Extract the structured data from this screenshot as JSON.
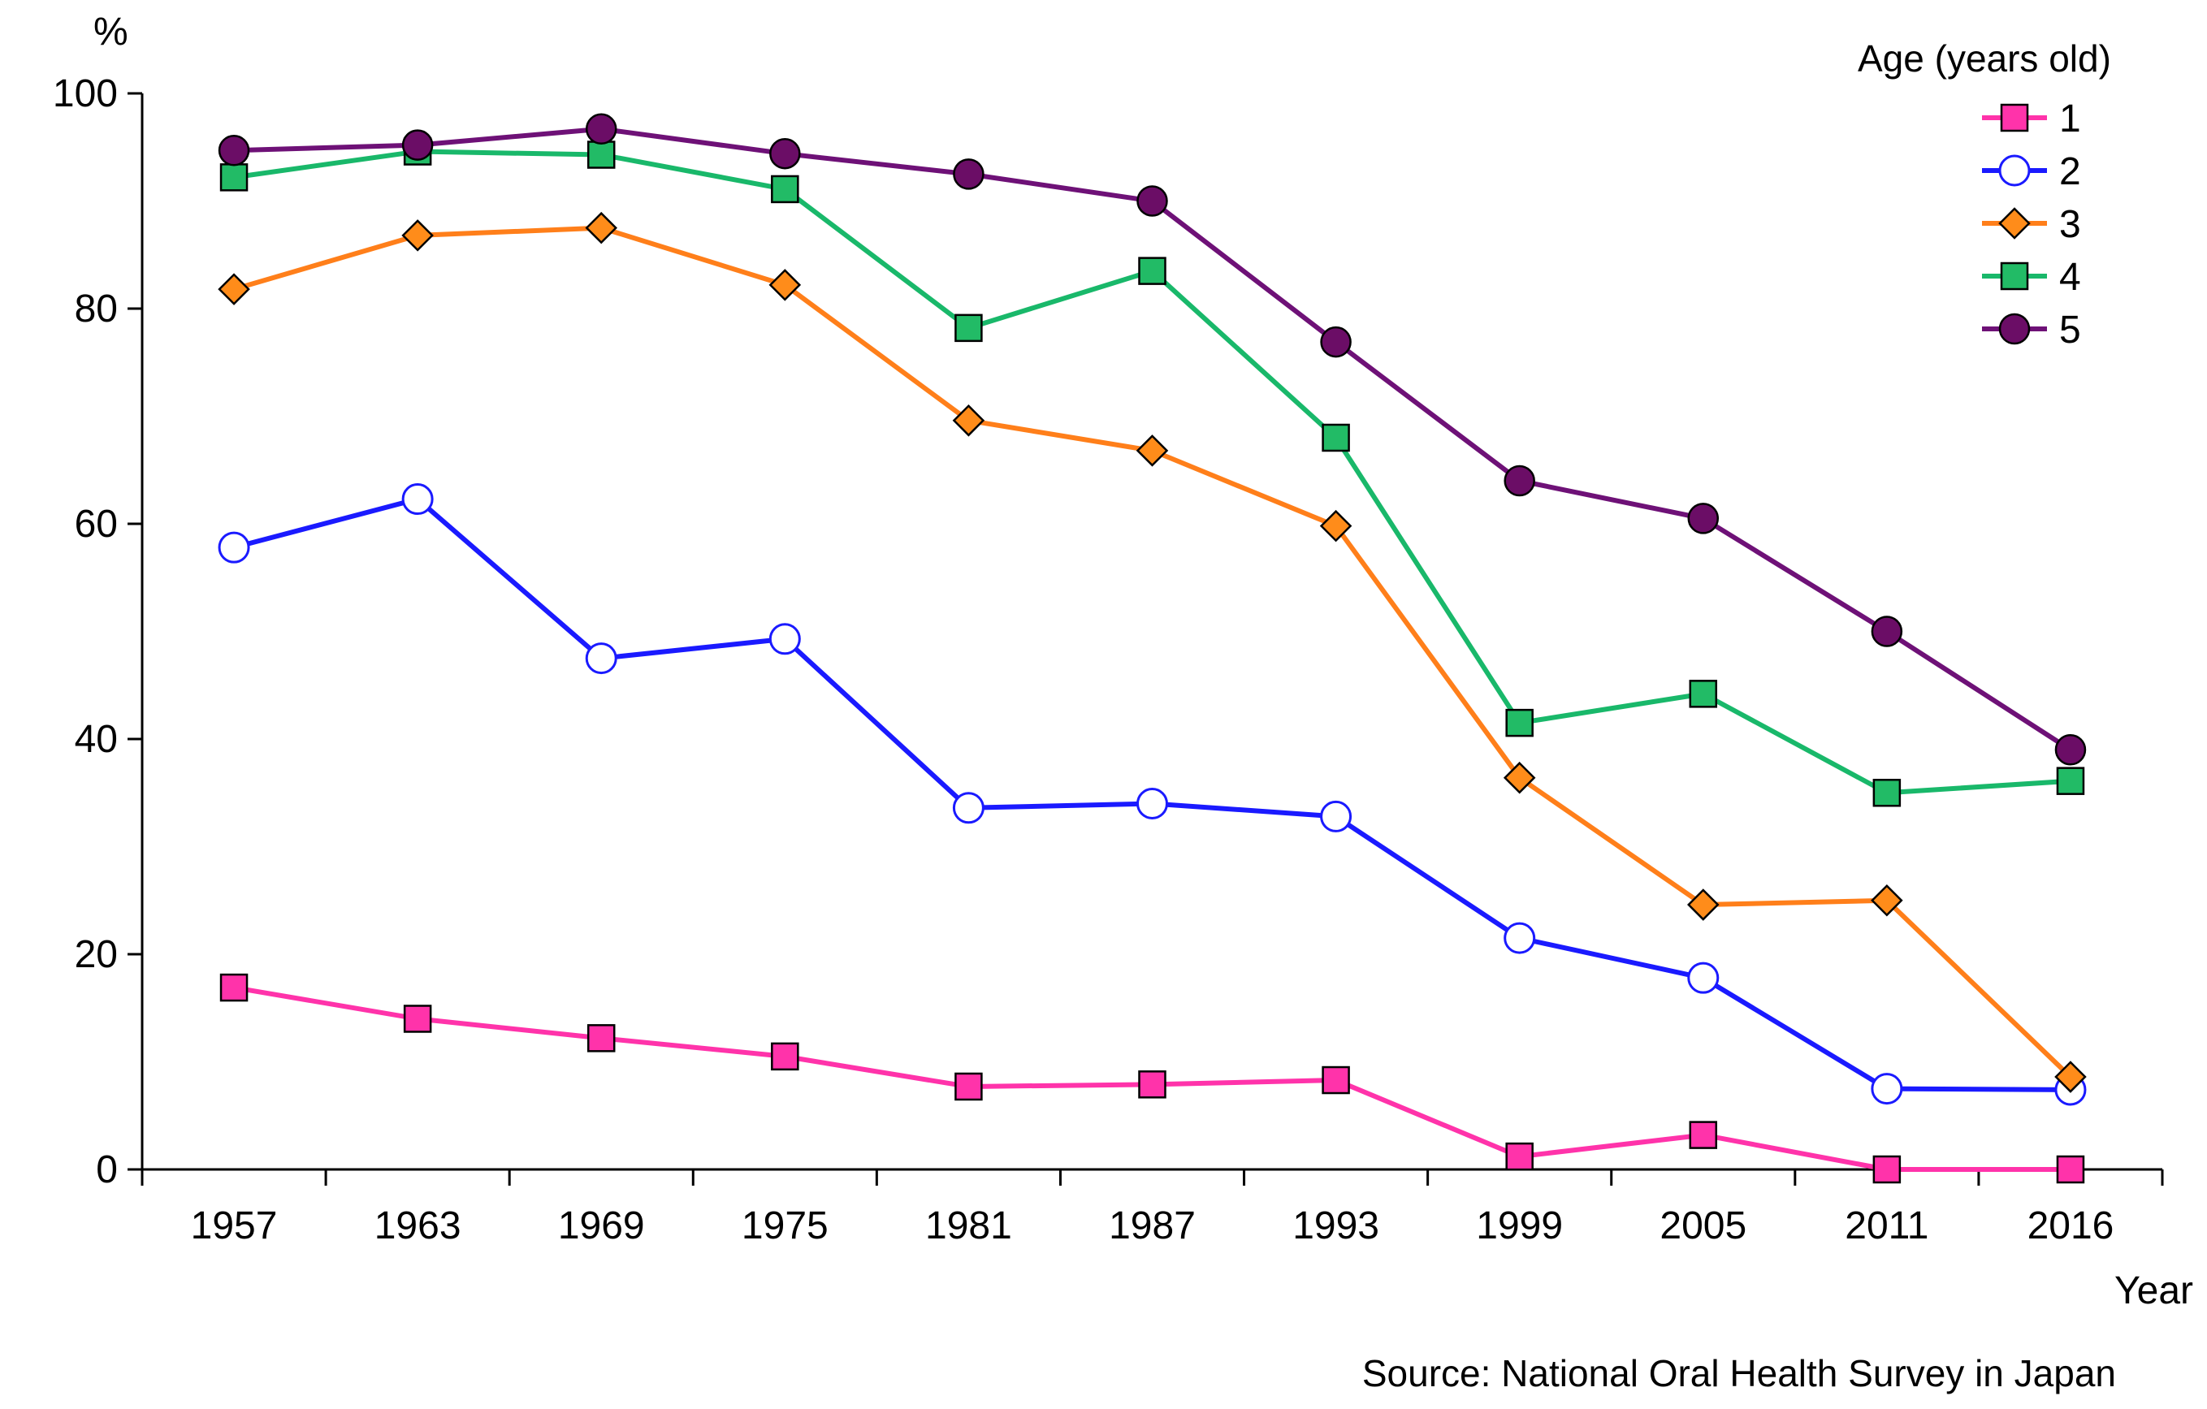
{
  "chart_data": {
    "type": "line",
    "title": "",
    "xlabel": "Year",
    "ylabel": "%",
    "ylim": [
      0,
      100
    ],
    "yticks": [
      "0",
      "20",
      "40",
      "60",
      "80",
      "100"
    ],
    "categories": [
      "1957",
      "1963",
      "1969",
      "1975",
      "1981",
      "1987",
      "1993",
      "1999",
      "2005",
      "2011",
      "2016"
    ],
    "legend_title": "Age (years old)",
    "legend_position": "top-right",
    "source": "Source: National Oral Health Survey in Japan",
    "series": [
      {
        "name": "1",
        "marker": "square",
        "color": "#ff33aa",
        "line_color": "#ff33aa",
        "values": [
          16.9,
          14.0,
          12.2,
          10.5,
          7.7,
          7.9,
          8.3,
          1.2,
          3.2,
          0.0,
          0.0
        ]
      },
      {
        "name": "2",
        "marker": "circle-open",
        "color": "#ffffff",
        "line_color": "#1a1aff",
        "values": [
          57.8,
          62.3,
          47.5,
          49.3,
          33.6,
          34.0,
          32.8,
          21.5,
          17.8,
          7.5,
          7.4
        ]
      },
      {
        "name": "3",
        "marker": "diamond",
        "color": "#ff8c1a",
        "line_color": "#ff7f1a",
        "values": [
          81.8,
          86.8,
          87.5,
          82.2,
          69.6,
          66.8,
          59.8,
          36.4,
          24.6,
          25.0,
          8.6
        ]
      },
      {
        "name": "4",
        "marker": "square",
        "color": "#22bb66",
        "line_color": "#19b86a",
        "values": [
          92.2,
          94.6,
          94.3,
          91.1,
          78.2,
          83.5,
          68.0,
          41.5,
          44.2,
          35.0,
          36.1
        ]
      },
      {
        "name": "5",
        "marker": "circle",
        "color": "#6b0d66",
        "line_color": "#6e1177",
        "values": [
          94.7,
          95.2,
          96.7,
          94.4,
          92.5,
          90.0,
          76.9,
          64.0,
          60.5,
          50.0,
          39.0
        ]
      }
    ]
  }
}
